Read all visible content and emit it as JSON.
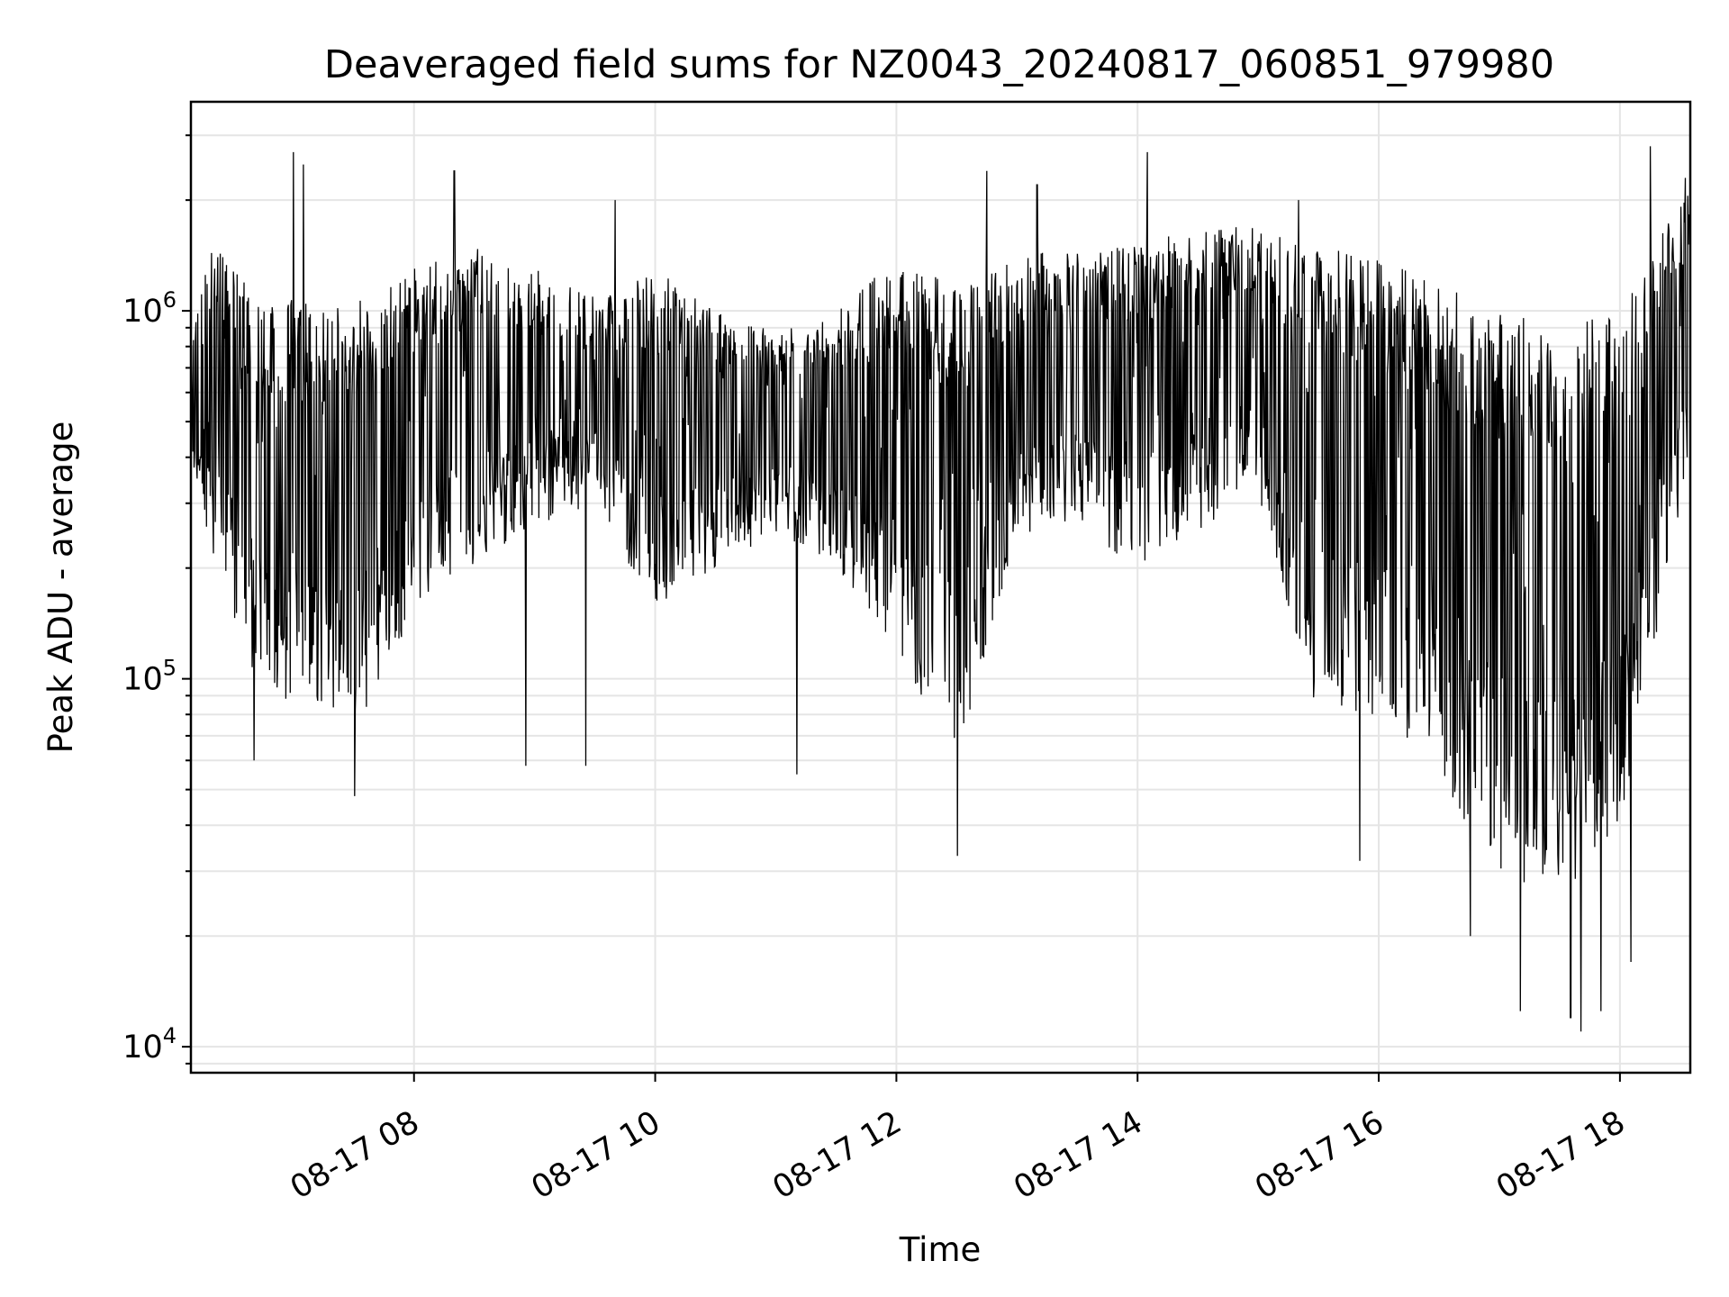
{
  "chart_data": {
    "type": "line",
    "title": "Deaveraged field sums for NZ0043_20240817_060851_979980",
    "xlabel": "Time",
    "ylabel": "Peak ADU - average",
    "yscale": "log",
    "xlim": [
      "2024-08-17 06:09",
      "2024-08-17 18:35"
    ],
    "ylim": [
      8500,
      3700000
    ],
    "grid": true,
    "color": "#000000",
    "x_ticks": [
      "08-17 08",
      "08-17 10",
      "08-17 12",
      "08-17 14",
      "08-17 16",
      "08-17 18"
    ],
    "y_ticks": [
      10000,
      100000,
      1000000
    ],
    "series": [
      {
        "x_start": "2024-08-17 06:09",
        "x_end": "2024-08-17 18:35",
        "envelope": [
          {
            "t": "06:09",
            "upper": 800000,
            "lower": 400000
          },
          {
            "t": "06:20",
            "upper": 1600000,
            "lower": 200000
          },
          {
            "t": "06:45",
            "upper": 1000000,
            "lower": 90000
          },
          {
            "t": "07:00",
            "upper": 1100000,
            "lower": 80000
          },
          {
            "t": "07:30",
            "upper": 1100000,
            "lower": 70000
          },
          {
            "t": "08:00",
            "upper": 1300000,
            "lower": 150000
          },
          {
            "t": "08:30",
            "upper": 1500000,
            "lower": 200000
          },
          {
            "t": "09:00",
            "upper": 1300000,
            "lower": 250000
          },
          {
            "t": "09:30",
            "upper": 1100000,
            "lower": 300000
          },
          {
            "t": "10:00",
            "upper": 1300000,
            "lower": 150000
          },
          {
            "t": "10:30",
            "upper": 1000000,
            "lower": 200000
          },
          {
            "t": "11:00",
            "upper": 900000,
            "lower": 250000
          },
          {
            "t": "11:30",
            "upper": 1000000,
            "lower": 200000
          },
          {
            "t": "12:00",
            "upper": 1400000,
            "lower": 120000
          },
          {
            "t": "12:30",
            "upper": 1200000,
            "lower": 60000
          },
          {
            "t": "13:00",
            "upper": 1400000,
            "lower": 250000
          },
          {
            "t": "13:30",
            "upper": 1500000,
            "lower": 250000
          },
          {
            "t": "14:00",
            "upper": 1500000,
            "lower": 200000
          },
          {
            "t": "14:30",
            "upper": 1700000,
            "lower": 250000
          },
          {
            "t": "15:00",
            "upper": 1700000,
            "lower": 300000
          },
          {
            "t": "15:30",
            "upper": 1500000,
            "lower": 80000
          },
          {
            "t": "16:00",
            "upper": 1400000,
            "lower": 80000
          },
          {
            "t": "16:30",
            "upper": 1200000,
            "lower": 50000
          },
          {
            "t": "17:00",
            "upper": 1000000,
            "lower": 30000
          },
          {
            "t": "17:30",
            "upper": 900000,
            "lower": 25000
          },
          {
            "t": "18:00",
            "upper": 1000000,
            "lower": 40000
          },
          {
            "t": "18:20",
            "upper": 1800000,
            "lower": 150000
          },
          {
            "t": "18:35",
            "upper": 2500000,
            "lower": 300000
          }
        ],
        "spikes_max": [
          {
            "t": "07:00",
            "y": 2700000
          },
          {
            "t": "07:05",
            "y": 2500000
          },
          {
            "t": "08:20",
            "y": 2400000
          },
          {
            "t": "09:40",
            "y": 2000000
          },
          {
            "t": "12:45",
            "y": 2400000
          },
          {
            "t": "13:10",
            "y": 2200000
          },
          {
            "t": "14:05",
            "y": 2700000
          },
          {
            "t": "15:20",
            "y": 2000000
          },
          {
            "t": "18:15",
            "y": 2800000
          }
        ],
        "spikes_min": [
          {
            "t": "06:40",
            "y": 60000
          },
          {
            "t": "07:30",
            "y": 48000
          },
          {
            "t": "08:55",
            "y": 58000
          },
          {
            "t": "09:25",
            "y": 58000
          },
          {
            "t": "11:10",
            "y": 55000
          },
          {
            "t": "12:30",
            "y": 33000
          },
          {
            "t": "15:50",
            "y": 32000
          },
          {
            "t": "16:45",
            "y": 20000
          },
          {
            "t": "17:10",
            "y": 12500
          },
          {
            "t": "17:35",
            "y": 12000
          },
          {
            "t": "17:40",
            "y": 11000
          },
          {
            "t": "17:50",
            "y": 12500
          },
          {
            "t": "18:05",
            "y": 17000
          }
        ]
      }
    ]
  }
}
